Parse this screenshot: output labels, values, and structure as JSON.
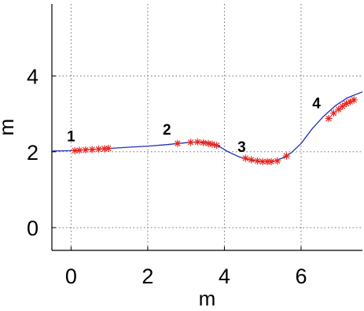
{
  "chart_data": {
    "type": "line",
    "xlabel": "m",
    "ylabel": "m",
    "xlim": [
      -0.5,
      7.6
    ],
    "ylim": [
      -0.6,
      5.9
    ],
    "xticks": [
      0,
      2,
      4,
      6
    ],
    "yticks": [
      0,
      2,
      4
    ],
    "grid": true,
    "colors": {
      "line": "#1f2fb8",
      "markers": "#e8261f",
      "grid": "#6f6f6f"
    },
    "series": [
      {
        "style": "line",
        "x": [
          -0.5,
          0.0,
          0.5,
          1.0,
          1.5,
          2.0,
          2.5,
          2.8,
          3.1,
          3.35,
          3.6,
          3.85,
          4.1,
          4.35,
          4.6,
          4.85,
          5.05,
          5.2,
          5.35,
          5.55,
          5.75,
          6.0,
          6.3,
          6.6,
          6.9,
          7.2,
          7.6
        ],
        "y": [
          2.02,
          2.03,
          2.06,
          2.09,
          2.12,
          2.15,
          2.19,
          2.22,
          2.25,
          2.26,
          2.24,
          2.15,
          2.0,
          1.88,
          1.8,
          1.75,
          1.74,
          1.74,
          1.77,
          1.85,
          1.98,
          2.22,
          2.62,
          2.95,
          3.22,
          3.42,
          3.58
        ]
      },
      {
        "style": "markers",
        "marker": "asterisk",
        "x": [
          0.1,
          0.22,
          0.38,
          0.55,
          0.72,
          0.87,
          0.97,
          2.78,
          3.12,
          3.3,
          3.45,
          3.58,
          3.68,
          3.8,
          4.55,
          4.7,
          4.86,
          5.0,
          5.12,
          5.22,
          5.38,
          5.62,
          6.72,
          6.85,
          6.98,
          7.08,
          7.18,
          7.28,
          7.38
        ],
        "y": [
          2.03,
          2.04,
          2.05,
          2.06,
          2.07,
          2.08,
          2.09,
          2.22,
          2.25,
          2.26,
          2.24,
          2.22,
          2.2,
          2.17,
          1.83,
          1.79,
          1.76,
          1.74,
          1.74,
          1.74,
          1.76,
          1.89,
          2.88,
          3.02,
          3.12,
          3.2,
          3.27,
          3.32,
          3.37
        ]
      }
    ],
    "annotations": [
      {
        "text": "1",
        "x": 0.0,
        "y": 2.28
      },
      {
        "text": "2",
        "x": 2.5,
        "y": 2.45
      },
      {
        "text": "3",
        "x": 4.45,
        "y": 2.0
      },
      {
        "text": "4",
        "x": 6.4,
        "y": 3.15
      }
    ]
  }
}
